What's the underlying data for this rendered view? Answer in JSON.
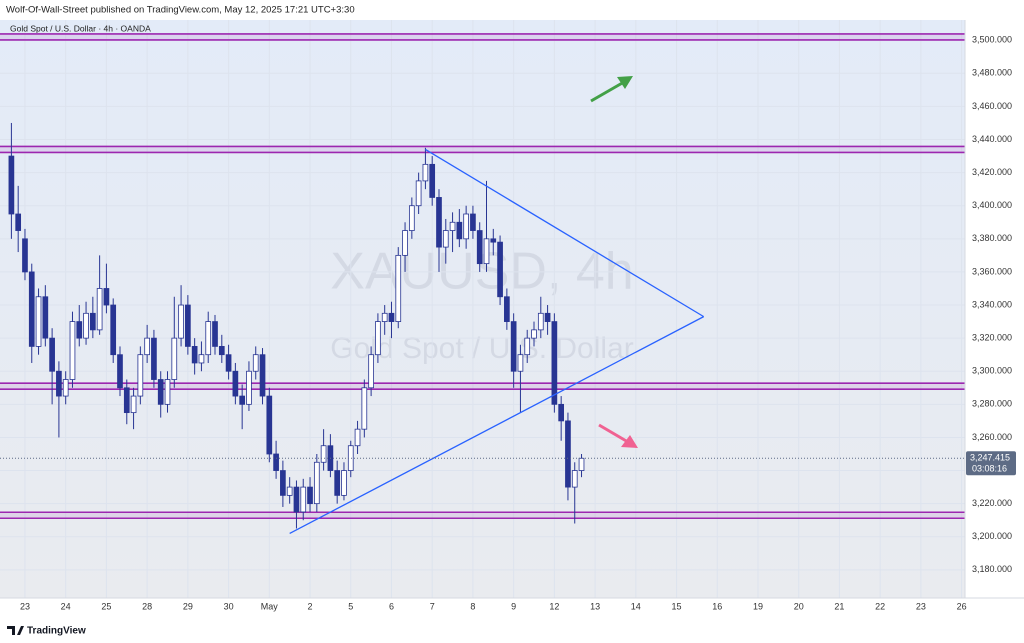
{
  "header": {
    "published": "Wolf-Of-Wall-Street published on TradingView.com, May 12, 2025 17:21 UTC+3:30",
    "symbol": "Gold Spot / U.S. Dollar · 4h · OANDA",
    "brand": "TradingView"
  },
  "chart_data": {
    "type": "candlestick",
    "watermark": [
      "XAUUSD, 4h",
      "Gold Spot / U.S. Dollar"
    ],
    "x": [
      0,
      1,
      2,
      3,
      4,
      5,
      6,
      7,
      8,
      9,
      10,
      11,
      12,
      13,
      14,
      15,
      16,
      17,
      18,
      19,
      20,
      21,
      22,
      23,
      24,
      25,
      26,
      27,
      28,
      29,
      30,
      31,
      32,
      33,
      34,
      35,
      36,
      37,
      38,
      39,
      40,
      41,
      42,
      43,
      44,
      45,
      46,
      47,
      48,
      49,
      50,
      51,
      52,
      53,
      54,
      55,
      56,
      57,
      58,
      59,
      60,
      61,
      62,
      63,
      64,
      65,
      66,
      67,
      68,
      69,
      70,
      71,
      72,
      73,
      74,
      75,
      76,
      77,
      78,
      79,
      80,
      81,
      82,
      83,
      84
    ],
    "ohlc": [
      [
        3430,
        3450,
        3380,
        3395
      ],
      [
        3395,
        3412,
        3372,
        3385
      ],
      [
        3380,
        3386,
        3355,
        3360
      ],
      [
        3360,
        3365,
        3305,
        3315
      ],
      [
        3315,
        3350,
        3310,
        3345
      ],
      [
        3345,
        3352,
        3315,
        3320
      ],
      [
        3320,
        3326,
        3280,
        3300
      ],
      [
        3300,
        3306,
        3260,
        3285
      ],
      [
        3285,
        3300,
        3280,
        3295
      ],
      [
        3295,
        3336,
        3290,
        3330
      ],
      [
        3330,
        3340,
        3315,
        3320
      ],
      [
        3320,
        3342,
        3316,
        3335
      ],
      [
        3335,
        3345,
        3320,
        3325
      ],
      [
        3325,
        3370,
        3322,
        3350
      ],
      [
        3350,
        3365,
        3335,
        3340
      ],
      [
        3340,
        3344,
        3305,
        3310
      ],
      [
        3310,
        3315,
        3285,
        3290
      ],
      [
        3290,
        3295,
        3268,
        3275
      ],
      [
        3275,
        3290,
        3265,
        3285
      ],
      [
        3285,
        3315,
        3280,
        3310
      ],
      [
        3310,
        3328,
        3305,
        3320
      ],
      [
        3320,
        3325,
        3290,
        3295
      ],
      [
        3295,
        3300,
        3272,
        3280
      ],
      [
        3280,
        3300,
        3275,
        3295
      ],
      [
        3295,
        3345,
        3290,
        3320
      ],
      [
        3320,
        3352,
        3315,
        3340
      ],
      [
        3340,
        3346,
        3310,
        3315
      ],
      [
        3315,
        3320,
        3298,
        3305
      ],
      [
        3305,
        3318,
        3300,
        3310
      ],
      [
        3310,
        3336,
        3305,
        3330
      ],
      [
        3330,
        3334,
        3310,
        3315
      ],
      [
        3315,
        3322,
        3305,
        3310
      ],
      [
        3310,
        3316,
        3295,
        3300
      ],
      [
        3300,
        3305,
        3280,
        3285
      ],
      [
        3285,
        3292,
        3265,
        3280
      ],
      [
        3280,
        3306,
        3276,
        3300
      ],
      [
        3300,
        3315,
        3295,
        3310
      ],
      [
        3310,
        3314,
        3280,
        3285
      ],
      [
        3285,
        3290,
        3245,
        3250
      ],
      [
        3250,
        3258,
        3235,
        3240
      ],
      [
        3240,
        3246,
        3218,
        3225
      ],
      [
        3225,
        3236,
        3220,
        3230
      ],
      [
        3230,
        3234,
        3205,
        3215
      ],
      [
        3215,
        3235,
        3210,
        3230
      ],
      [
        3230,
        3236,
        3215,
        3220
      ],
      [
        3220,
        3250,
        3215,
        3245
      ],
      [
        3245,
        3265,
        3240,
        3255
      ],
      [
        3255,
        3262,
        3236,
        3240
      ],
      [
        3240,
        3246,
        3220,
        3225
      ],
      [
        3225,
        3245,
        3222,
        3240
      ],
      [
        3240,
        3258,
        3236,
        3255
      ],
      [
        3255,
        3270,
        3250,
        3265
      ],
      [
        3265,
        3295,
        3260,
        3290
      ],
      [
        3290,
        3315,
        3285,
        3310
      ],
      [
        3310,
        3335,
        3305,
        3330
      ],
      [
        3330,
        3340,
        3322,
        3335
      ],
      [
        3335,
        3342,
        3320,
        3330
      ],
      [
        3330,
        3375,
        3326,
        3370
      ],
      [
        3370,
        3390,
        3360,
        3385
      ],
      [
        3385,
        3405,
        3380,
        3400
      ],
      [
        3400,
        3420,
        3395,
        3415
      ],
      [
        3415,
        3435,
        3410,
        3425
      ],
      [
        3425,
        3430,
        3400,
        3405
      ],
      [
        3405,
        3410,
        3360,
        3375
      ],
      [
        3375,
        3392,
        3365,
        3385
      ],
      [
        3385,
        3396,
        3372,
        3390
      ],
      [
        3390,
        3398,
        3375,
        3380
      ],
      [
        3380,
        3400,
        3374,
        3395
      ],
      [
        3395,
        3400,
        3380,
        3385
      ],
      [
        3385,
        3390,
        3360,
        3365
      ],
      [
        3365,
        3415,
        3360,
        3380
      ],
      [
        3380,
        3386,
        3370,
        3378
      ],
      [
        3378,
        3382,
        3340,
        3345
      ],
      [
        3345,
        3350,
        3325,
        3330
      ],
      [
        3330,
        3335,
        3290,
        3300
      ],
      [
        3300,
        3316,
        3275,
        3310
      ],
      [
        3310,
        3325,
        3305,
        3320
      ],
      [
        3320,
        3330,
        3315,
        3325
      ],
      [
        3325,
        3345,
        3320,
        3335
      ],
      [
        3335,
        3340,
        3322,
        3330
      ],
      [
        3330,
        3335,
        3275,
        3280
      ],
      [
        3280,
        3285,
        3258,
        3270
      ],
      [
        3270,
        3275,
        3222,
        3230
      ],
      [
        3230,
        3245,
        3208,
        3240
      ],
      [
        3240,
        3250,
        3236,
        3247.415
      ]
    ],
    "up_color": "#ffffff",
    "down_color": "#283593",
    "levels": [
      3502,
      3434,
      3291,
      3213
    ],
    "level_color": "#9c27b0",
    "trendlines": [
      [
        [
          41,
          3202
        ],
        [
          102,
          3333
        ]
      ],
      [
        [
          61,
          3434
        ],
        [
          102,
          3333
        ]
      ]
    ],
    "trendline_color": "#2962ff",
    "last_price": {
      "value": 3247.415,
      "label": "3,247.415"
    },
    "countdown": "03:08:16",
    "xlim": [
      -0.5,
      140.5
    ],
    "ylim": [
      3163,
      3511
    ],
    "xticks": [
      {
        "value": 2,
        "label": "23"
      },
      {
        "value": 8,
        "label": "24"
      },
      {
        "value": 14,
        "label": "25"
      },
      {
        "value": 20,
        "label": "28"
      },
      {
        "value": 26,
        "label": "29"
      },
      {
        "value": 32,
        "label": "30"
      },
      {
        "value": 38,
        "label": "May"
      },
      {
        "value": 44,
        "label": "2"
      },
      {
        "value": 50,
        "label": "5"
      },
      {
        "value": 56,
        "label": "6"
      },
      {
        "value": 62,
        "label": "7"
      },
      {
        "value": 68,
        "label": "8"
      },
      {
        "value": 74,
        "label": "9"
      },
      {
        "value": 80,
        "label": "12"
      },
      {
        "value": 86,
        "label": "13"
      },
      {
        "value": 92,
        "label": "14"
      },
      {
        "value": 98,
        "label": "15"
      },
      {
        "value": 104,
        "label": "16"
      },
      {
        "value": 110,
        "label": "19"
      },
      {
        "value": 116,
        "label": "20"
      },
      {
        "value": 122,
        "label": "21"
      },
      {
        "value": 128,
        "label": "22"
      },
      {
        "value": 134,
        "label": "23"
      },
      {
        "value": 140,
        "label": "26"
      }
    ],
    "yticks": [
      {
        "value": 3180,
        "label": "3,180.000"
      },
      {
        "value": 3200,
        "label": "3,200.000"
      },
      {
        "value": 3220,
        "label": "3,220.000"
      },
      {
        "value": 3240,
        "label": "3,240.000"
      },
      {
        "value": 3260,
        "label": "3,260.000"
      },
      {
        "value": 3280,
        "label": "3,280.000"
      },
      {
        "value": 3300,
        "label": "3,300.000"
      },
      {
        "value": 3320,
        "label": "3,320.000"
      },
      {
        "value": 3340,
        "label": "3,340.000"
      },
      {
        "value": 3360,
        "label": "3,360.000"
      },
      {
        "value": 3380,
        "label": "3,380.000"
      },
      {
        "value": 3400,
        "label": "3,400.000"
      },
      {
        "value": 3420,
        "label": "3,420.000"
      },
      {
        "value": 3440,
        "label": "3,440.000"
      },
      {
        "value": 3460,
        "label": "3,460.000"
      },
      {
        "value": 3480,
        "label": "3,480.000"
      },
      {
        "value": 3500,
        "label": "3,500.000"
      }
    ],
    "grid": true
  }
}
